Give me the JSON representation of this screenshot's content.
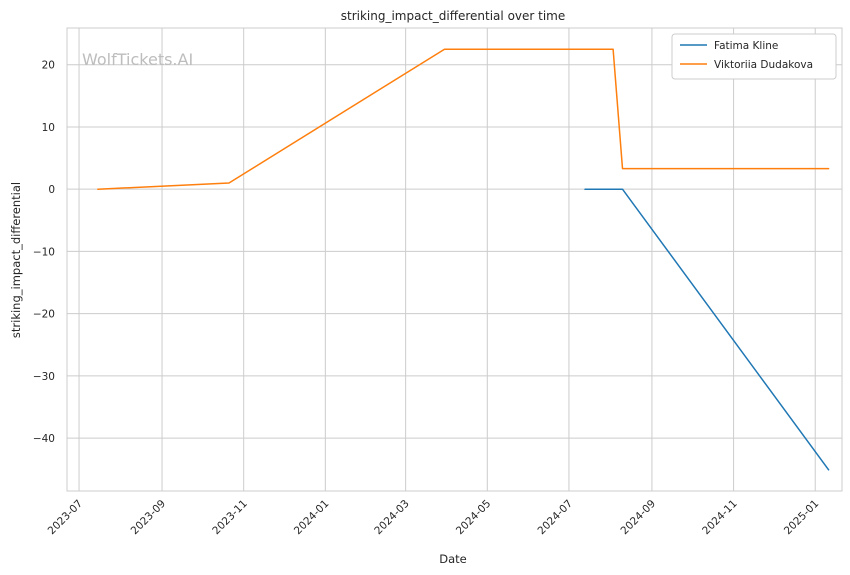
{
  "chart_data": {
    "type": "line",
    "title": "striking_impact_differential over time",
    "xlabel": "Date",
    "ylabel": "striking_impact_differential",
    "watermark": "WolfTickets.AI",
    "x_ticks": [
      "2023-07",
      "2023-09",
      "2023-11",
      "2024-01",
      "2024-03",
      "2024-05",
      "2024-07",
      "2024-09",
      "2024-11",
      "2025-01"
    ],
    "y_ticks": [
      20,
      10,
      0,
      -10,
      -20,
      -30,
      -40
    ],
    "y_tick_labels": [
      "20",
      "10",
      "0",
      "−10",
      "−20",
      "−30",
      "−40"
    ],
    "xlim": [
      "2023-06-22",
      "2025-01-21"
    ],
    "ylim": [
      -48.5,
      25.9
    ],
    "grid": true,
    "legend_position": "top-right",
    "series": [
      {
        "name": "Fatima Kline",
        "color": "#1f77b4",
        "points": [
          {
            "x": "2024-07-13",
            "y": 0
          },
          {
            "x": "2024-08-10",
            "y": 0
          },
          {
            "x": "2025-01-11",
            "y": -45.1
          }
        ]
      },
      {
        "name": "Viktoriia Dudakova",
        "color": "#ff7f0e",
        "points": [
          {
            "x": "2023-07-15",
            "y": 0
          },
          {
            "x": "2023-10-21",
            "y": 1.0
          },
          {
            "x": "2024-03-30",
            "y": 22.5
          },
          {
            "x": "2024-08-03",
            "y": 22.5
          },
          {
            "x": "2024-08-10",
            "y": 3.3
          },
          {
            "x": "2025-01-11",
            "y": 3.3
          }
        ]
      }
    ]
  }
}
